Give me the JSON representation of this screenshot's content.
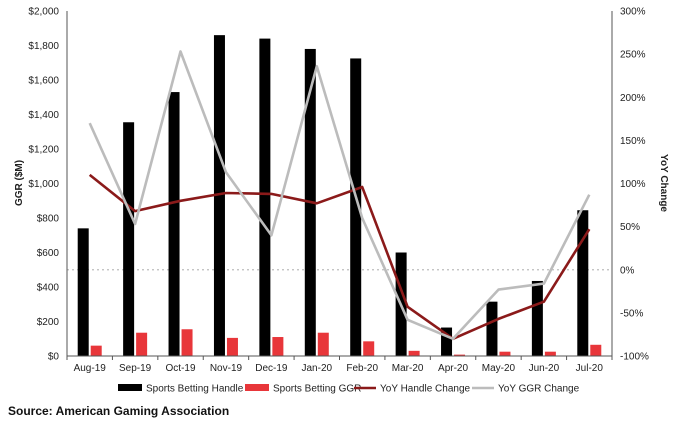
{
  "chart_data": {
    "type": "bar",
    "categories": [
      "Aug-19",
      "Sep-19",
      "Oct-19",
      "Nov-19",
      "Dec-19",
      "Jan-20",
      "Feb-20",
      "Mar-20",
      "Apr-20",
      "May-20",
      "Jun-20",
      "Jul-20"
    ],
    "series": [
      {
        "name": "Sports Betting Handle",
        "type": "bar",
        "axis": "left",
        "color": "#000000",
        "values": [
          740,
          1355,
          1530,
          1860,
          1840,
          1780,
          1725,
          600,
          165,
          315,
          435,
          845
        ]
      },
      {
        "name": "Sports Betting GGR",
        "type": "bar",
        "axis": "left",
        "color": "#e8363a",
        "values": [
          60,
          135,
          155,
          105,
          110,
          135,
          85,
          30,
          8,
          25,
          25,
          65
        ]
      },
      {
        "name": "YoY Handle Change",
        "type": "line",
        "axis": "right",
        "color": "#8b1a1a",
        "values": [
          110,
          68,
          80,
          89,
          88,
          77,
          96,
          -43,
          -80,
          -57,
          -37,
          47
        ]
      },
      {
        "name": "YoY GGR Change",
        "type": "line",
        "axis": "right",
        "color": "#bcbcbc",
        "values": [
          170,
          53,
          253,
          113,
          40,
          236,
          60,
          -58,
          -80,
          -23,
          -16,
          87
        ]
      }
    ],
    "ylabel": "GGR ($M)",
    "y2label": "YoY Change",
    "ylim": [
      0,
      2000
    ],
    "y2lim": [
      -100,
      300
    ],
    "yticks": [
      "$0",
      "$200",
      "$400",
      "$600",
      "$800",
      "$1,000",
      "$1,200",
      "$1,400",
      "$1,600",
      "$1,800",
      "$2,000"
    ],
    "y2ticks": [
      "-100%",
      "-50%",
      "0%",
      "50%",
      "100%",
      "150%",
      "200%",
      "250%",
      "300%"
    ],
    "zero_reference_line": true,
    "grid": false,
    "legend": "bottom"
  },
  "source": "Source: American Gaming Association"
}
